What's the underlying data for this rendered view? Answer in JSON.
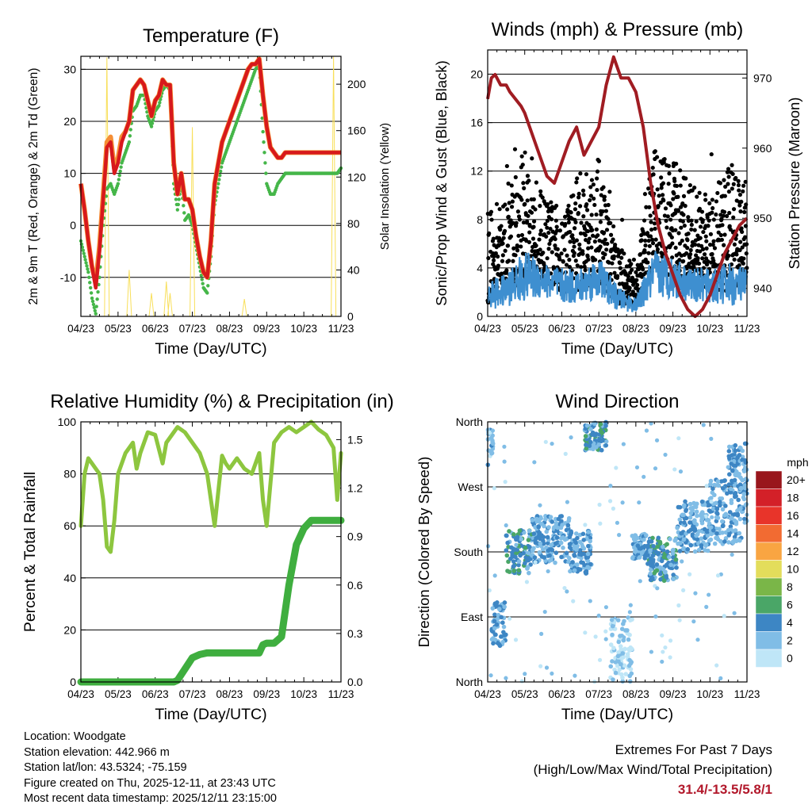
{
  "colors": {
    "temp_red": "#d7191c",
    "temp_orange": "#f58e35",
    "dewpoint_green": "#45b649",
    "solar_yellow": "#f8df5a",
    "wind_black": "#000000",
    "sonic_blue": "#3e8fd0",
    "pressure_maroon": "#a01c22",
    "rh_lightgreen": "#8dc63f",
    "precip_green": "#3fae3f",
    "extremes": "#b2182b"
  },
  "chart_data": [
    {
      "id": "temperature",
      "type": "line",
      "title": "Temperature (F)",
      "xlabel": "Time (Day/UTC)",
      "ylabel": "2m & 9m T (Red, Orange) & 2m Td (Green)",
      "y2label": "Solar Insolation (Yellow)",
      "xticks": [
        "04/23",
        "05/23",
        "06/23",
        "07/23",
        "08/23",
        "09/23",
        "10/23",
        "11/23"
      ],
      "xlim": [
        0,
        7
      ],
      "ylim": [
        -17.5,
        32.5
      ],
      "yticks": [
        -10,
        0,
        10,
        20,
        30
      ],
      "y2lim": [
        0,
        224
      ],
      "y2ticks": [
        0,
        40,
        80,
        120,
        160,
        200
      ],
      "x": [
        0,
        0.1,
        0.2,
        0.3,
        0.4,
        0.5,
        0.6,
        0.7,
        0.8,
        0.9,
        1.0,
        1.1,
        1.2,
        1.3,
        1.4,
        1.5,
        1.6,
        1.7,
        1.8,
        1.9,
        2.0,
        2.1,
        2.2,
        2.3,
        2.4,
        2.5,
        2.6,
        2.7,
        2.8,
        2.9,
        3.0,
        3.1,
        3.2,
        3.3,
        3.4,
        3.5,
        3.6,
        3.7,
        3.8,
        3.9,
        4.0,
        4.1,
        4.2,
        4.3,
        4.4,
        4.5,
        4.6,
        4.7,
        4.8,
        4.9,
        5.0,
        5.1,
        5.2,
        5.3,
        5.4,
        5.5,
        5.6,
        5.7,
        5.8,
        5.9,
        6.0,
        6.1,
        6.2,
        6.3,
        6.4,
        6.5,
        6.6,
        6.7,
        6.8,
        6.9,
        7.0
      ],
      "series": [
        {
          "name": "2m T",
          "values": [
            8,
            3,
            -3,
            -8,
            -12,
            -5,
            5,
            15,
            16,
            10,
            12,
            16,
            18,
            20,
            26,
            27,
            28,
            27,
            24,
            21,
            24,
            25,
            28,
            27,
            27,
            12,
            6,
            10,
            5,
            5,
            3,
            -2,
            -6,
            -9,
            -10,
            -3,
            8,
            12,
            16,
            18,
            20,
            22,
            24,
            26,
            28,
            30,
            31,
            31,
            32,
            25,
            19,
            15,
            14,
            13,
            13,
            14,
            14,
            14,
            14,
            14,
            14,
            14,
            14,
            14,
            14,
            14,
            14,
            14,
            14,
            14,
            14
          ]
        },
        {
          "name": "9m T",
          "values": [
            8,
            3,
            -3,
            -8,
            -11,
            -4,
            6,
            16,
            17,
            11,
            13,
            17,
            18,
            20,
            26,
            27,
            28,
            27,
            24,
            21,
            24,
            25,
            28,
            27,
            27,
            12,
            6,
            10,
            5,
            5,
            3,
            -2,
            -6,
            -9,
            -10,
            -3,
            8,
            12,
            16,
            18,
            20,
            22,
            24,
            26,
            28,
            30,
            31,
            31,
            32,
            25,
            19,
            15,
            14,
            13,
            13,
            14,
            14,
            14,
            14,
            14,
            14,
            14,
            14,
            14,
            14,
            14,
            14,
            14,
            14,
            14,
            14
          ]
        },
        {
          "name": "2m Td",
          "values": [
            -3,
            -6,
            -9,
            -14,
            -17,
            -10,
            0,
            7,
            8,
            6,
            8,
            12,
            14,
            16,
            22,
            23,
            25,
            25,
            21,
            19,
            22,
            23,
            26,
            27,
            26,
            8,
            3,
            8,
            1,
            2,
            0,
            -4,
            -8,
            -12,
            -13,
            -6,
            4,
            8,
            12,
            14,
            16,
            18,
            20,
            22,
            24,
            26,
            28,
            30,
            31,
            18,
            8,
            6,
            6,
            8,
            9,
            10,
            10,
            10,
            10,
            10,
            10,
            10,
            10,
            10,
            10,
            10,
            10,
            10,
            10,
            10,
            11
          ]
        },
        {
          "name": "Solar Insolation",
          "axis": "y2",
          "values": [
            0,
            0,
            0,
            0,
            0,
            0,
            0,
            223,
            0,
            0,
            0,
            0,
            0,
            40,
            0,
            0,
            0,
            0,
            0,
            20,
            0,
            0,
            0,
            30,
            20,
            0,
            0,
            0,
            0,
            0,
            163,
            0,
            0,
            0,
            0,
            0,
            0,
            0,
            0,
            0,
            0,
            0,
            0,
            0,
            15,
            0,
            0,
            0,
            0,
            0,
            0,
            0,
            0,
            0,
            0,
            0,
            0,
            0,
            0,
            0,
            0,
            0,
            0,
            0,
            0,
            0,
            0,
            0,
            224,
            0,
            0
          ]
        }
      ]
    },
    {
      "id": "winds",
      "type": "scatter",
      "title": "Winds (mph) & Pressure (mb)",
      "xlabel": "Time (Day/UTC)",
      "ylabel": "Sonic/Prop Wind & Gust (Blue, Black)",
      "y2label": "Station Pressure (Maroon)",
      "xticks": [
        "04/23",
        "05/23",
        "06/23",
        "07/23",
        "08/23",
        "09/23",
        "10/23",
        "11/23"
      ],
      "xlim": [
        0,
        7
      ],
      "ylim": [
        0,
        22
      ],
      "yticks": [
        0,
        4,
        8,
        12,
        16,
        20
      ],
      "y2lim": [
        936,
        974
      ],
      "y2ticks": [
        940,
        950,
        960,
        970
      ],
      "pressure": {
        "x": [
          0,
          0.1,
          0.2,
          0.35,
          0.5,
          0.6,
          0.75,
          0.9,
          1.0,
          1.2,
          1.4,
          1.6,
          1.8,
          2.0,
          2.2,
          2.4,
          2.6,
          2.8,
          3.0,
          3.2,
          3.4,
          3.6,
          3.8,
          4.0,
          4.2,
          4.4,
          4.6,
          4.8,
          5.0,
          5.2,
          5.4,
          5.6,
          5.8,
          6.0,
          6.2,
          6.4,
          6.6,
          6.8,
          7.0
        ],
        "values": [
          967,
          970,
          970.5,
          969,
          969,
          968,
          967,
          966,
          965,
          962,
          959,
          956,
          955,
          958,
          961,
          963,
          959,
          961,
          963,
          969,
          973,
          970,
          970,
          968,
          963,
          955,
          949,
          945,
          942,
          939,
          937,
          936,
          937,
          939,
          942,
          945,
          947,
          949,
          950
        ]
      },
      "gust_band": {
        "x": [
          0,
          0.5,
          1.0,
          1.5,
          2.0,
          2.5,
          3.0,
          3.5,
          4.0,
          4.5,
          5.0,
          5.5,
          6.0,
          6.5,
          7.0
        ],
        "low": [
          1,
          2,
          3,
          3,
          2,
          2,
          3,
          1,
          1,
          4,
          3,
          3,
          2,
          2,
          3
        ],
        "high": [
          9,
          10,
          14,
          10,
          9,
          12,
          13,
          6,
          4,
          14,
          13,
          11,
          10,
          13,
          11
        ]
      },
      "sonic_band": {
        "x": [
          0,
          0.5,
          1.0,
          1.5,
          2.0,
          2.5,
          3.0,
          3.5,
          4.0,
          4.5,
          5.0,
          5.5,
          6.0,
          6.5,
          7.0
        ],
        "low": [
          0.5,
          0.8,
          1.2,
          1.5,
          1.0,
          1.0,
          1.5,
          0.5,
          0.3,
          1.5,
          1.5,
          1.2,
          1.0,
          0.8,
          1.0
        ],
        "high": [
          3,
          3.5,
          5.5,
          4.5,
          4,
          4,
          5,
          2.5,
          1.5,
          5.5,
          5,
          4,
          4,
          4.5,
          4
        ]
      }
    },
    {
      "id": "humidity",
      "type": "line",
      "title": "Relative Humidity (%) & Precipitation (in)",
      "xlabel": "Time (Day/UTC)",
      "ylabel": "Percent & Total Rainfall",
      "xticks": [
        "04/23",
        "05/23",
        "06/23",
        "07/23",
        "08/23",
        "09/23",
        "10/23",
        "11/23"
      ],
      "xlim": [
        0,
        7
      ],
      "ylim": [
        0,
        100
      ],
      "yticks": [
        0,
        20,
        40,
        60,
        80,
        100
      ],
      "y2lim": [
        0,
        1.61
      ],
      "y2ticks": [
        "0.0",
        "0.3",
        "0.6",
        "0.9",
        "1.2",
        "1.5"
      ],
      "x": [
        0,
        0.1,
        0.2,
        0.3,
        0.4,
        0.5,
        0.6,
        0.7,
        0.8,
        0.9,
        1.0,
        1.2,
        1.4,
        1.5,
        1.6,
        1.8,
        2.0,
        2.2,
        2.3,
        2.5,
        2.6,
        2.8,
        3.0,
        3.2,
        3.4,
        3.6,
        3.8,
        3.9,
        4.0,
        4.2,
        4.4,
        4.6,
        4.8,
        4.9,
        5.0,
        5.2,
        5.4,
        5.6,
        5.8,
        6.0,
        6.2,
        6.4,
        6.6,
        6.8,
        6.9,
        7.0
      ],
      "series": [
        {
          "name": "Relative Humidity",
          "values": [
            60,
            80,
            86,
            84,
            82,
            80,
            70,
            52,
            50,
            62,
            80,
            88,
            92,
            82,
            88,
            96,
            95,
            84,
            92,
            96,
            98,
            96,
            92,
            88,
            80,
            60,
            87,
            84,
            82,
            86,
            82,
            80,
            88,
            70,
            60,
            92,
            96,
            98,
            96,
            98,
            100,
            97,
            95,
            90,
            70,
            88
          ]
        },
        {
          "name": "Total Rainfall",
          "values": [
            0,
            0,
            0,
            0,
            0,
            0,
            0,
            0,
            0,
            0,
            0,
            0,
            0,
            0,
            0,
            0,
            0,
            0,
            0,
            0,
            0.01,
            0.08,
            0.15,
            0.17,
            0.18,
            0.18,
            0.18,
            0.18,
            0.18,
            0.18,
            0.18,
            0.18,
            0.18,
            0.23,
            0.24,
            0.24,
            0.28,
            0.6,
            0.85,
            0.95,
            1.0,
            1.0,
            1.0,
            1.0,
            1.0,
            1.0
          ]
        }
      ]
    },
    {
      "id": "direction",
      "type": "scatter",
      "title": "Wind Direction",
      "xlabel": "Time (Day/UTC)",
      "ylabel": "Direction (Colored By Speed)",
      "xticks": [
        "04/23",
        "05/23",
        "06/23",
        "07/23",
        "08/23",
        "09/23",
        "10/23",
        "11/23"
      ],
      "xlim": [
        0,
        7
      ],
      "ylim": [
        0,
        360
      ],
      "yticks": [
        "North",
        "East",
        "South",
        "West",
        "North"
      ],
      "clusters": [
        {
          "x0": 0.0,
          "x1": 0.15,
          "d0": 300,
          "d1": 350,
          "speed": 2
        },
        {
          "x0": 0.1,
          "x1": 0.5,
          "d0": 50,
          "d1": 110,
          "speed": 3
        },
        {
          "x0": 0.5,
          "x1": 1.2,
          "d0": 150,
          "d1": 210,
          "speed": 4
        },
        {
          "x0": 1.2,
          "x1": 2.2,
          "d0": 165,
          "d1": 230,
          "speed": 3
        },
        {
          "x0": 2.2,
          "x1": 2.8,
          "d0": 150,
          "d1": 210,
          "speed": 3
        },
        {
          "x0": 2.6,
          "x1": 3.2,
          "d0": 320,
          "d1": 360,
          "speed": 4
        },
        {
          "x0": 3.3,
          "x1": 3.9,
          "d0": 0,
          "d1": 90,
          "speed": 1
        },
        {
          "x0": 3.9,
          "x1": 4.4,
          "d0": 170,
          "d1": 205,
          "speed": 3
        },
        {
          "x0": 4.3,
          "x1": 5.1,
          "d0": 140,
          "d1": 200,
          "speed": 4
        },
        {
          "x0": 5.1,
          "x1": 6.0,
          "d0": 180,
          "d1": 250,
          "speed": 3
        },
        {
          "x0": 6.0,
          "x1": 7.0,
          "d0": 190,
          "d1": 280,
          "speed": 3
        },
        {
          "x0": 6.5,
          "x1": 7.0,
          "d0": 260,
          "d1": 330,
          "speed": 3
        }
      ],
      "legend": {
        "title": "mph",
        "labels": [
          "20+",
          "18",
          "16",
          "14",
          "12",
          "10",
          "8",
          "6",
          "4",
          "2",
          "0"
        ],
        "colors": [
          "#99161c",
          "#d32028",
          "#e8342a",
          "#f26b32",
          "#f9a542",
          "#e3dd5b",
          "#7ab648",
          "#4aa667",
          "#3d86c4",
          "#80bde6",
          "#bfe6f7"
        ]
      }
    }
  ],
  "info": {
    "location": "Location: Woodgate",
    "elevation": "Station elevation: 442.966 m",
    "latlon": "Station lat/lon: 43.5324; -75.159",
    "created": "Figure created on Thu, 2025-12-11, at 23:43 UTC",
    "recent": "Most recent data timestamp: 2025/12/11 23:15:00"
  },
  "extremes": {
    "line1": "Extremes For Past 7 Days",
    "line2": "(High/Low/Max Wind/Total Precipitation)",
    "value": "31.4/-13.5/5.8/1"
  }
}
